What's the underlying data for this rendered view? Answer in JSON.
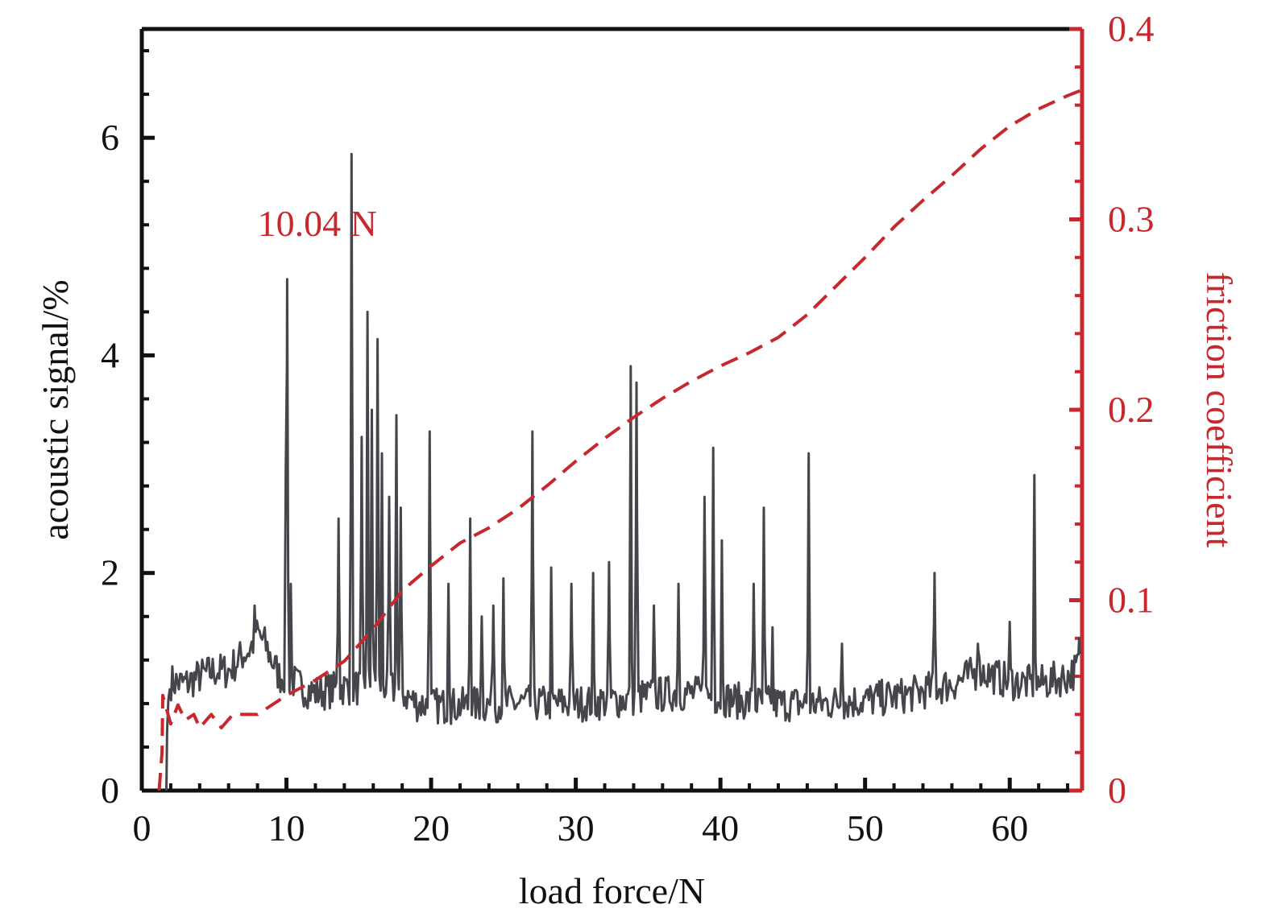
{
  "chart_data": {
    "type": "line",
    "title": "",
    "xlabel": "load force/N",
    "ylabel_left": "acoustic signal/%",
    "ylabel_right": "friction coefficient",
    "xlim": [
      0,
      65
    ],
    "ylim_left": [
      0,
      7
    ],
    "ylim_right": [
      0,
      0.4
    ],
    "x_ticks": [
      0,
      10,
      20,
      30,
      40,
      50,
      60
    ],
    "y_ticks_left": [
      0,
      2,
      4,
      6
    ],
    "y_ticks_right": [
      0,
      0.1,
      0.2,
      0.3,
      0.4
    ],
    "x_tick_labels": [
      "0",
      "10",
      "20",
      "30",
      "40",
      "50",
      "60"
    ],
    "y_tick_labels_left": [
      "0",
      "2",
      "4",
      "6"
    ],
    "y_tick_labels_right": [
      "0",
      "0.1",
      "0.2",
      "0.3",
      "0.4"
    ],
    "grid": false,
    "colors": {
      "acoustic": "#45464b",
      "friction": "#c8282d",
      "left_axis": "#111111",
      "right_axis": "#c8282d",
      "annotation": "#c8282d"
    },
    "annotations": [
      {
        "text": "10.04 N",
        "x": 8,
        "y_left": 5.1
      }
    ],
    "series": [
      {
        "axis": "left",
        "style": "solid",
        "baseline": [
          [
            1.7,
            0
          ],
          [
            1.8,
            0.8
          ],
          [
            2.0,
            1.0
          ],
          [
            3,
            0.98
          ],
          [
            4,
            1.05
          ],
          [
            5,
            1.1
          ],
          [
            6,
            1.1
          ],
          [
            7,
            1.25
          ],
          [
            7.5,
            1.3
          ],
          [
            8,
            1.45
          ],
          [
            8.5,
            1.35
          ],
          [
            9,
            1.2
          ],
          [
            9.5,
            1.05
          ],
          [
            10,
            1.05
          ],
          [
            11,
            0.95
          ],
          [
            12,
            0.9
          ],
          [
            13,
            0.92
          ],
          [
            14,
            0.95
          ],
          [
            15,
            0.95
          ],
          [
            16,
            1.0
          ],
          [
            17,
            0.95
          ],
          [
            18,
            0.9
          ],
          [
            19,
            0.8
          ],
          [
            20,
            0.78
          ],
          [
            22,
            0.78
          ],
          [
            25,
            0.8
          ],
          [
            28,
            0.8
          ],
          [
            30,
            0.8
          ],
          [
            33,
            0.83
          ],
          [
            35,
            0.87
          ],
          [
            37,
            0.9
          ],
          [
            39,
            0.88
          ],
          [
            41,
            0.83
          ],
          [
            43,
            0.8
          ],
          [
            45,
            0.8
          ],
          [
            47,
            0.8
          ],
          [
            50,
            0.83
          ],
          [
            53,
            0.88
          ],
          [
            56,
            0.98
          ],
          [
            58,
            1.1
          ],
          [
            60,
            1.0
          ],
          [
            62,
            0.98
          ],
          [
            64,
            1.05
          ],
          [
            65,
            1.15
          ]
        ],
        "peaks": [
          [
            1.75,
            0.55
          ],
          [
            7.8,
            1.7
          ],
          [
            9.95,
            2.9
          ],
          [
            10.05,
            4.7
          ],
          [
            10.3,
            1.9
          ],
          [
            13.6,
            2.5
          ],
          [
            14.5,
            5.85
          ],
          [
            15.2,
            3.25
          ],
          [
            15.6,
            4.4
          ],
          [
            15.9,
            3.5
          ],
          [
            16.3,
            4.15
          ],
          [
            16.6,
            3.1
          ],
          [
            17.1,
            2.7
          ],
          [
            17.6,
            3.45
          ],
          [
            17.9,
            2.6
          ],
          [
            19.9,
            3.3
          ],
          [
            21.2,
            1.9
          ],
          [
            22.7,
            2.5
          ],
          [
            23.5,
            1.6
          ],
          [
            24.3,
            1.7
          ],
          [
            25.0,
            1.95
          ],
          [
            27.0,
            3.3
          ],
          [
            28.3,
            2.05
          ],
          [
            29.7,
            1.9
          ],
          [
            31.2,
            2.0
          ],
          [
            32.3,
            2.1
          ],
          [
            33.8,
            3.9
          ],
          [
            34.2,
            3.75
          ],
          [
            35.4,
            1.7
          ],
          [
            37.1,
            1.9
          ],
          [
            38.9,
            2.7
          ],
          [
            39.5,
            3.15
          ],
          [
            40.1,
            2.3
          ],
          [
            42.3,
            1.9
          ],
          [
            43.0,
            2.6
          ],
          [
            43.6,
            1.5
          ],
          [
            46.1,
            3.1
          ],
          [
            48.4,
            1.35
          ],
          [
            54.8,
            2.0
          ],
          [
            57.8,
            1.35
          ],
          [
            60.0,
            1.55
          ],
          [
            61.7,
            2.9
          ],
          [
            64.8,
            1.4
          ]
        ]
      },
      {
        "axis": "right",
        "style": "dashed",
        "points": [
          [
            1.2,
            0
          ],
          [
            1.4,
            0.02
          ],
          [
            1.45,
            0.05
          ],
          [
            2.0,
            0.035
          ],
          [
            2.5,
            0.045
          ],
          [
            3.0,
            0.037
          ],
          [
            3.6,
            0.04
          ],
          [
            4.0,
            0.033
          ],
          [
            4.8,
            0.04
          ],
          [
            5.5,
            0.033
          ],
          [
            6.3,
            0.04
          ],
          [
            8.0,
            0.04
          ],
          [
            10.0,
            0.05
          ],
          [
            12.0,
            0.058
          ],
          [
            14.0,
            0.068
          ],
          [
            16.0,
            0.085
          ],
          [
            18.0,
            0.105
          ],
          [
            20.0,
            0.118
          ],
          [
            22.0,
            0.13
          ],
          [
            24.0,
            0.138
          ],
          [
            26.0,
            0.148
          ],
          [
            28.0,
            0.16
          ],
          [
            30.0,
            0.173
          ],
          [
            32.0,
            0.185
          ],
          [
            34.0,
            0.196
          ],
          [
            36.0,
            0.206
          ],
          [
            38.0,
            0.215
          ],
          [
            40.0,
            0.223
          ],
          [
            42.0,
            0.23
          ],
          [
            44.0,
            0.238
          ],
          [
            46.0,
            0.25
          ],
          [
            48.0,
            0.265
          ],
          [
            50.0,
            0.28
          ],
          [
            52.0,
            0.296
          ],
          [
            54.0,
            0.31
          ],
          [
            56.0,
            0.323
          ],
          [
            58.0,
            0.337
          ],
          [
            60.0,
            0.349
          ],
          [
            62.0,
            0.358
          ],
          [
            64.0,
            0.365
          ],
          [
            65.0,
            0.368
          ]
        ]
      }
    ]
  }
}
